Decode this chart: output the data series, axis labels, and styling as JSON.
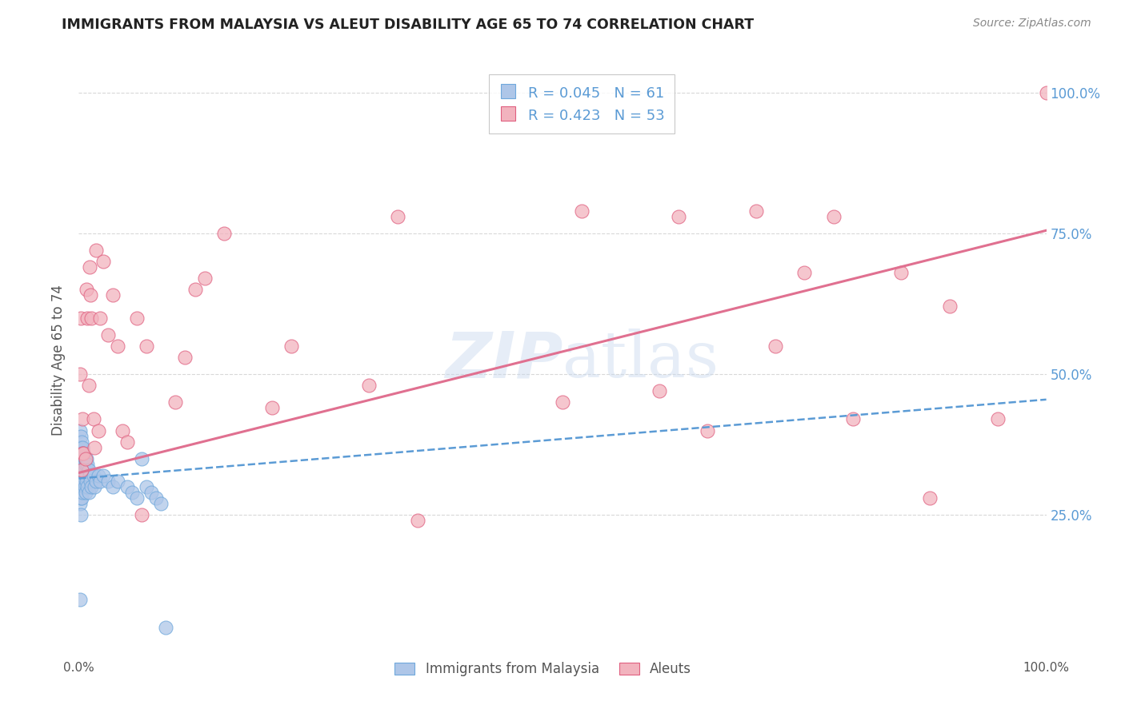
{
  "title": "IMMIGRANTS FROM MALAYSIA VS ALEUT DISABILITY AGE 65 TO 74 CORRELATION CHART",
  "source": "Source: ZipAtlas.com",
  "ylabel": "Disability Age 65 to 74",
  "xlim": [
    0.0,
    1.0
  ],
  "ylim": [
    0.0,
    1.05
  ],
  "xtick_labels": [
    "0.0%",
    "100.0%"
  ],
  "ytick_labels": [
    "25.0%",
    "50.0%",
    "75.0%",
    "100.0%"
  ],
  "ytick_positions": [
    0.25,
    0.5,
    0.75,
    1.0
  ],
  "watermark_zip": "ZIP",
  "watermark_atlas": "atlas",
  "blue_R": 0.045,
  "blue_N": 61,
  "pink_R": 0.423,
  "pink_N": 53,
  "blue_color": "#aec6e8",
  "pink_color": "#f2b3be",
  "blue_edge_color": "#6fa8dc",
  "pink_edge_color": "#e06080",
  "blue_line_color": "#5b9bd5",
  "pink_line_color": "#e07090",
  "blue_points_x": [
    0.001,
    0.001,
    0.001,
    0.001,
    0.001,
    0.001,
    0.001,
    0.001,
    0.002,
    0.002,
    0.002,
    0.002,
    0.002,
    0.002,
    0.002,
    0.003,
    0.003,
    0.003,
    0.003,
    0.003,
    0.004,
    0.004,
    0.004,
    0.004,
    0.005,
    0.005,
    0.005,
    0.006,
    0.006,
    0.006,
    0.007,
    0.007,
    0.007,
    0.008,
    0.008,
    0.009,
    0.009,
    0.01,
    0.01,
    0.011,
    0.012,
    0.013,
    0.015,
    0.016,
    0.018,
    0.02,
    0.022,
    0.025,
    0.03,
    0.035,
    0.04,
    0.05,
    0.055,
    0.06,
    0.065,
    0.07,
    0.075,
    0.08,
    0.085,
    0.09
  ],
  "blue_points_y": [
    0.4,
    0.37,
    0.35,
    0.33,
    0.31,
    0.29,
    0.27,
    0.1,
    0.39,
    0.37,
    0.34,
    0.32,
    0.3,
    0.28,
    0.25,
    0.38,
    0.36,
    0.33,
    0.31,
    0.28,
    0.37,
    0.35,
    0.32,
    0.29,
    0.36,
    0.34,
    0.31,
    0.35,
    0.33,
    0.3,
    0.34,
    0.32,
    0.29,
    0.35,
    0.31,
    0.34,
    0.3,
    0.33,
    0.29,
    0.32,
    0.31,
    0.3,
    0.32,
    0.3,
    0.31,
    0.32,
    0.31,
    0.32,
    0.31,
    0.3,
    0.31,
    0.3,
    0.29,
    0.28,
    0.35,
    0.3,
    0.29,
    0.28,
    0.27,
    0.05
  ],
  "pink_points_x": [
    0.001,
    0.002,
    0.003,
    0.004,
    0.004,
    0.005,
    0.007,
    0.008,
    0.009,
    0.01,
    0.011,
    0.012,
    0.013,
    0.015,
    0.016,
    0.018,
    0.02,
    0.022,
    0.025,
    0.03,
    0.035,
    0.04,
    0.045,
    0.05,
    0.06,
    0.065,
    0.07,
    0.1,
    0.11,
    0.12,
    0.13,
    0.15,
    0.2,
    0.22,
    0.3,
    0.33,
    0.35,
    0.5,
    0.52,
    0.6,
    0.62,
    0.65,
    0.7,
    0.72,
    0.75,
    0.78,
    0.8,
    0.85,
    0.88,
    0.9,
    0.95,
    1.0
  ],
  "pink_points_y": [
    0.5,
    0.6,
    0.33,
    0.42,
    0.36,
    0.36,
    0.35,
    0.65,
    0.6,
    0.48,
    0.69,
    0.64,
    0.6,
    0.42,
    0.37,
    0.72,
    0.4,
    0.6,
    0.7,
    0.57,
    0.64,
    0.55,
    0.4,
    0.38,
    0.6,
    0.25,
    0.55,
    0.45,
    0.53,
    0.65,
    0.67,
    0.75,
    0.44,
    0.55,
    0.48,
    0.78,
    0.24,
    0.45,
    0.79,
    0.47,
    0.78,
    0.4,
    0.79,
    0.55,
    0.68,
    0.78,
    0.42,
    0.68,
    0.28,
    0.62,
    0.42,
    1.0
  ],
  "blue_trend_y_start": 0.315,
  "blue_trend_y_end": 0.455,
  "pink_trend_y_start": 0.325,
  "pink_trend_y_end": 0.755,
  "grid_color": "#d8d8d8",
  "bg_color": "#ffffff",
  "title_color": "#222222",
  "axis_label_color": "#555555",
  "ytick_color": "#5b9bd5",
  "source_color": "#888888"
}
